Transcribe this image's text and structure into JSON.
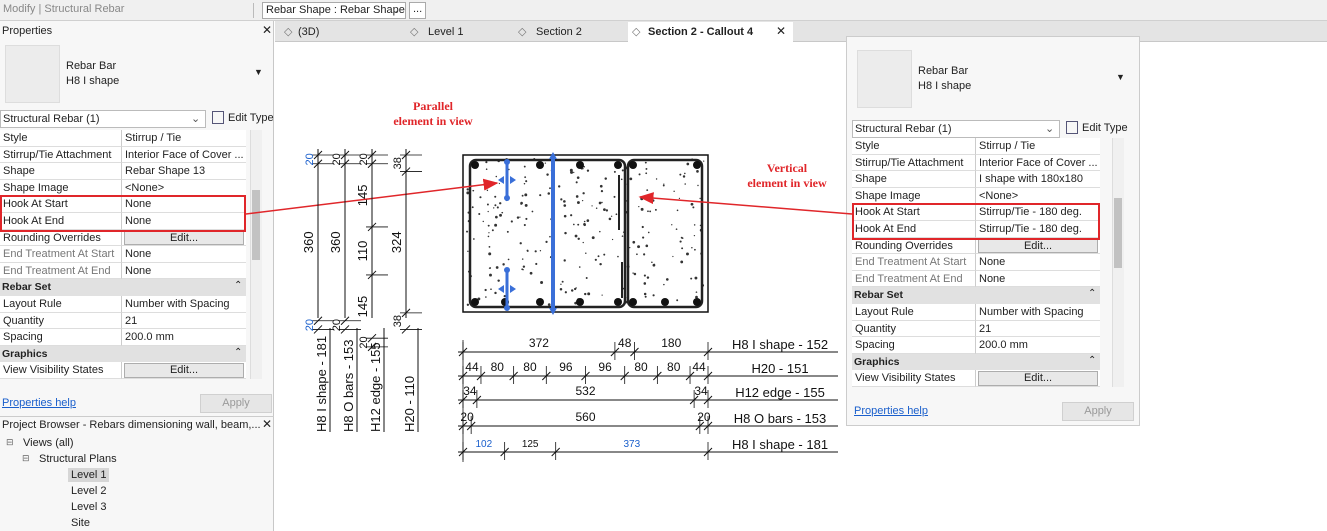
{
  "toolbar": {
    "context": "Modify | Structural Rebar",
    "type_selector": "Rebar Shape : Rebar Shape",
    "more": "..."
  },
  "tabs": [
    "(3D)",
    "Level 1",
    "Section 2",
    "Section 2 - Callout 4"
  ],
  "properties_left": {
    "title": "Properties",
    "type_name": [
      "Rebar Bar",
      "H8 I shape"
    ],
    "filter": "Structural Rebar (1)",
    "edit_type": "Edit Type",
    "rows": [
      {
        "key": "Style",
        "value": "Stirrup / Tie"
      },
      {
        "key": "Stirrup/Tie Attachment",
        "value": "Interior Face of Cover ..."
      },
      {
        "key": "Shape",
        "value": "Rebar Shape 13"
      },
      {
        "key": "Shape Image",
        "value": "<None>"
      },
      {
        "key": "Hook At Start",
        "value": "None",
        "highlight": true
      },
      {
        "key": "Hook At End",
        "value": "None",
        "highlight": true
      },
      {
        "key": "Rounding Overrides",
        "value": "Edit...",
        "button": true
      },
      {
        "key": "End Treatment At Start",
        "value": "None"
      },
      {
        "key": "End Treatment At End",
        "value": "None"
      },
      {
        "section": "Rebar Set"
      },
      {
        "key": "Layout Rule",
        "value": "Number with Spacing"
      },
      {
        "key": "Quantity",
        "value": "21"
      },
      {
        "key": "Spacing",
        "value": "200.0 mm"
      },
      {
        "section": "Graphics"
      },
      {
        "key": "View Visibility States",
        "value": "Edit...",
        "button": true
      }
    ],
    "help": "Properties help",
    "apply": "Apply"
  },
  "properties_right": {
    "type_name": [
      "Rebar Bar",
      "H8 I shape"
    ],
    "filter": "Structural Rebar (1)",
    "edit_type": "Edit Type",
    "rows": [
      {
        "key": "Style",
        "value": "Stirrup / Tie"
      },
      {
        "key": "Stirrup/Tie Attachment",
        "value": "Interior Face of Cover ..."
      },
      {
        "key": "Shape",
        "value": "I shape with 180x180"
      },
      {
        "key": "Shape Image",
        "value": "<None>"
      },
      {
        "key": "Hook At Start",
        "value": "Stirrup/Tie - 180 deg.",
        "highlight": true
      },
      {
        "key": "Hook At End",
        "value": "Stirrup/Tie - 180 deg.",
        "highlight": true
      },
      {
        "key": "Rounding Overrides",
        "value": "Edit...",
        "button": true
      },
      {
        "key": "End Treatment At Start",
        "value": "None"
      },
      {
        "key": "End Treatment At End",
        "value": "None"
      },
      {
        "section": "Rebar Set"
      },
      {
        "key": "Layout Rule",
        "value": "Number with Spacing"
      },
      {
        "key": "Quantity",
        "value": "21"
      },
      {
        "key": "Spacing",
        "value": "200.0 mm"
      },
      {
        "section": "Graphics"
      },
      {
        "key": "View Visibility States",
        "value": "Edit...",
        "button": true
      }
    ],
    "help": "Properties help",
    "apply": "Apply"
  },
  "project_browser": {
    "title": "Project Browser - Rebars dimensioning wall, beam,...",
    "tree": {
      "label": "Views (all)",
      "children": [
        {
          "label": "Structural Plans",
          "children": [
            {
              "label": "Level 1",
              "selected": true
            },
            {
              "label": "Level 2"
            },
            {
              "label": "Level 3"
            },
            {
              "label": "Site"
            }
          ]
        }
      ]
    }
  },
  "annotations": {
    "parallel": [
      "Parallel",
      "element in view"
    ],
    "vertical": [
      "Vertical",
      "element in view"
    ]
  },
  "vertical_dims": [
    [
      20,
      360,
      20
    ],
    [
      20,
      360,
      20
    ],
    [
      20,
      145,
      110,
      145,
      20
    ],
    [
      38,
      324,
      38
    ]
  ],
  "vertical_tags": [
    "H8 I shape - 181",
    "H8 O bars - 153",
    "H12 edge - 155",
    "H20 - 110"
  ],
  "horizontal_dims": [
    {
      "label": "H8 I shape - 152",
      "segments": [
        372,
        48,
        180
      ]
    },
    {
      "label": "H20 - 151",
      "segments": [
        44,
        80,
        80,
        96,
        96,
        80,
        80,
        44
      ]
    },
    {
      "label": "H12 edge - 155",
      "segments": [
        34,
        532,
        34
      ]
    },
    {
      "label": "H8 O bars - 153",
      "segments": [
        20,
        560,
        20
      ]
    },
    {
      "label": "H8 I shape - 181",
      "segments": [
        102,
        125,
        373
      ]
    }
  ]
}
